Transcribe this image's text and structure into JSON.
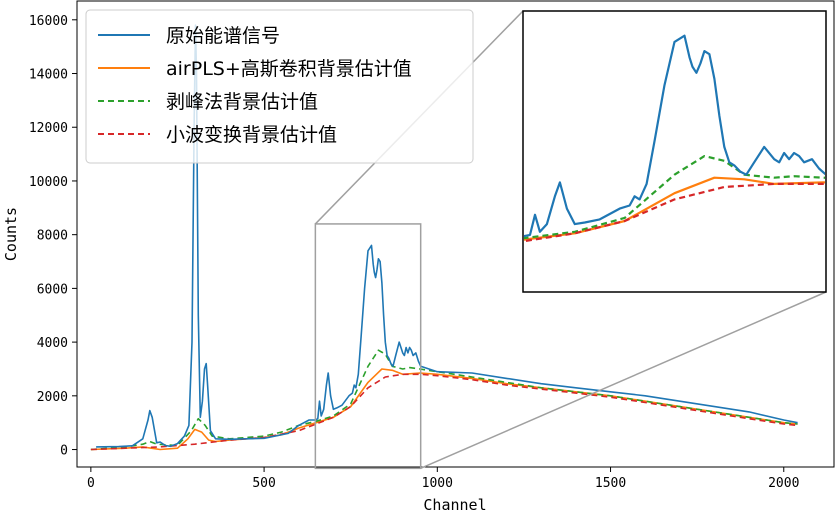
{
  "chart_data": {
    "type": "line",
    "xlabel": "Channel",
    "ylabel": "Counts",
    "xlim": [
      -40,
      2145
    ],
    "ylim": [
      -650,
      16700
    ],
    "xticks": [
      0,
      500,
      1000,
      1500,
      2000
    ],
    "yticks": [
      0,
      2000,
      4000,
      6000,
      8000,
      10000,
      12000,
      14000,
      16000
    ],
    "legend_position": "top-left",
    "inset": {
      "position": "top-right",
      "xlim": [
        648,
        952
      ],
      "ylim": [
        -700,
        8400
      ]
    },
    "source_box": {
      "x": [
        648,
        952
      ],
      "y": [
        -700,
        8400
      ]
    },
    "series": [
      {
        "name": "原始能谱信号",
        "color": "#1f77b4",
        "style": "solid",
        "x": [
          15,
          80,
          120,
          150,
          165,
          170,
          177,
          190,
          200,
          215,
          230,
          250,
          270,
          283,
          292,
          298,
          302,
          305,
          310,
          316,
          322,
          328,
          333,
          337,
          345,
          360,
          400,
          500,
          570,
          600,
          630,
          648,
          655,
          660,
          665,
          672,
          680,
          685,
          692,
          700,
          710,
          725,
          745,
          755,
          760,
          765,
          772,
          780,
          790,
          800,
          805,
          810,
          815,
          818,
          822,
          826,
          830,
          835,
          840,
          845,
          850,
          855,
          860,
          866,
          872,
          880,
          890,
          900,
          905,
          910,
          915,
          920,
          925,
          930,
          938,
          945,
          952,
          1000,
          1100,
          1200,
          1300,
          1400,
          1500,
          1600,
          1700,
          1800,
          1900,
          2000,
          2040
        ],
        "y": [
          100,
          110,
          140,
          400,
          1100,
          1450,
          1200,
          250,
          280,
          150,
          120,
          220,
          500,
          900,
          4000,
          12000,
          15800,
          14000,
          5000,
          1200,
          1800,
          3000,
          3200,
          2400,
          700,
          400,
          380,
          420,
          600,
          900,
          1100,
          1100,
          1150,
          1800,
          1250,
          1500,
          2400,
          2850,
          2000,
          1500,
          1550,
          1650,
          2000,
          2100,
          2400,
          2300,
          2800,
          4200,
          6000,
          7400,
          7500,
          7600,
          6900,
          6600,
          6400,
          6700,
          7100,
          7000,
          6200,
          5000,
          4000,
          3500,
          3400,
          3200,
          3100,
          3500,
          4000,
          3600,
          3500,
          3800,
          3600,
          3800,
          3700,
          3500,
          3600,
          3300,
          3100,
          2900,
          2850,
          2650,
          2450,
          2300,
          2150,
          2000,
          1800,
          1600,
          1400,
          1100,
          1000
        ]
      },
      {
        "name": "airPLS+高斯卷积背景估计值",
        "color": "#ff7f0e",
        "style": "solid",
        "x": [
          0,
          100,
          150,
          200,
          250,
          280,
          300,
          320,
          340,
          360,
          400,
          450,
          500,
          550,
          600,
          650,
          700,
          750,
          800,
          840,
          870,
          900,
          950,
          1000,
          1100,
          1200,
          1300,
          1400,
          1500,
          1600,
          1700,
          1800,
          1900,
          2000,
          2040
        ],
        "y": [
          0,
          50,
          100,
          0,
          50,
          400,
          750,
          650,
          350,
          300,
          350,
          400,
          450,
          550,
          800,
          1000,
          1200,
          1600,
          2500,
          3000,
          2950,
          2800,
          2850,
          2800,
          2650,
          2450,
          2300,
          2150,
          2000,
          1800,
          1600,
          1400,
          1200,
          1000,
          950
        ]
      },
      {
        "name": "剥峰法背景估计值",
        "color": "#2ca02c",
        "style": "dashed",
        "x": [
          0,
          100,
          150,
          170,
          190,
          250,
          290,
          310,
          330,
          350,
          400,
          450,
          500,
          550,
          600,
          650,
          700,
          750,
          800,
          830,
          850,
          870,
          900,
          920,
          950,
          1000,
          1100,
          1200,
          1300,
          1400,
          1500,
          1600,
          1700,
          1800,
          1900,
          2000,
          2040
        ],
        "y": [
          0,
          100,
          200,
          300,
          200,
          150,
          700,
          1150,
          900,
          500,
          400,
          450,
          500,
          650,
          900,
          1050,
          1250,
          1700,
          3100,
          3700,
          3550,
          3100,
          3000,
          3050,
          3000,
          2900,
          2700,
          2500,
          2300,
          2150,
          2000,
          1800,
          1600,
          1400,
          1200,
          1000,
          950
        ]
      },
      {
        "name": "小波变换背景估计值",
        "color": "#d62728",
        "style": "dashed",
        "x": [
          0,
          100,
          200,
          300,
          400,
          500,
          600,
          650,
          700,
          750,
          800,
          850,
          900,
          950,
          1000,
          1100,
          1200,
          1300,
          1400,
          1500,
          1600,
          1700,
          1800,
          1900,
          2000,
          2040
        ],
        "y": [
          0,
          50,
          100,
          200,
          350,
          450,
          700,
          950,
          1200,
          1600,
          2300,
          2700,
          2800,
          2800,
          2750,
          2600,
          2400,
          2250,
          2100,
          1950,
          1750,
          1550,
          1350,
          1150,
          950,
          900
        ]
      }
    ]
  }
}
